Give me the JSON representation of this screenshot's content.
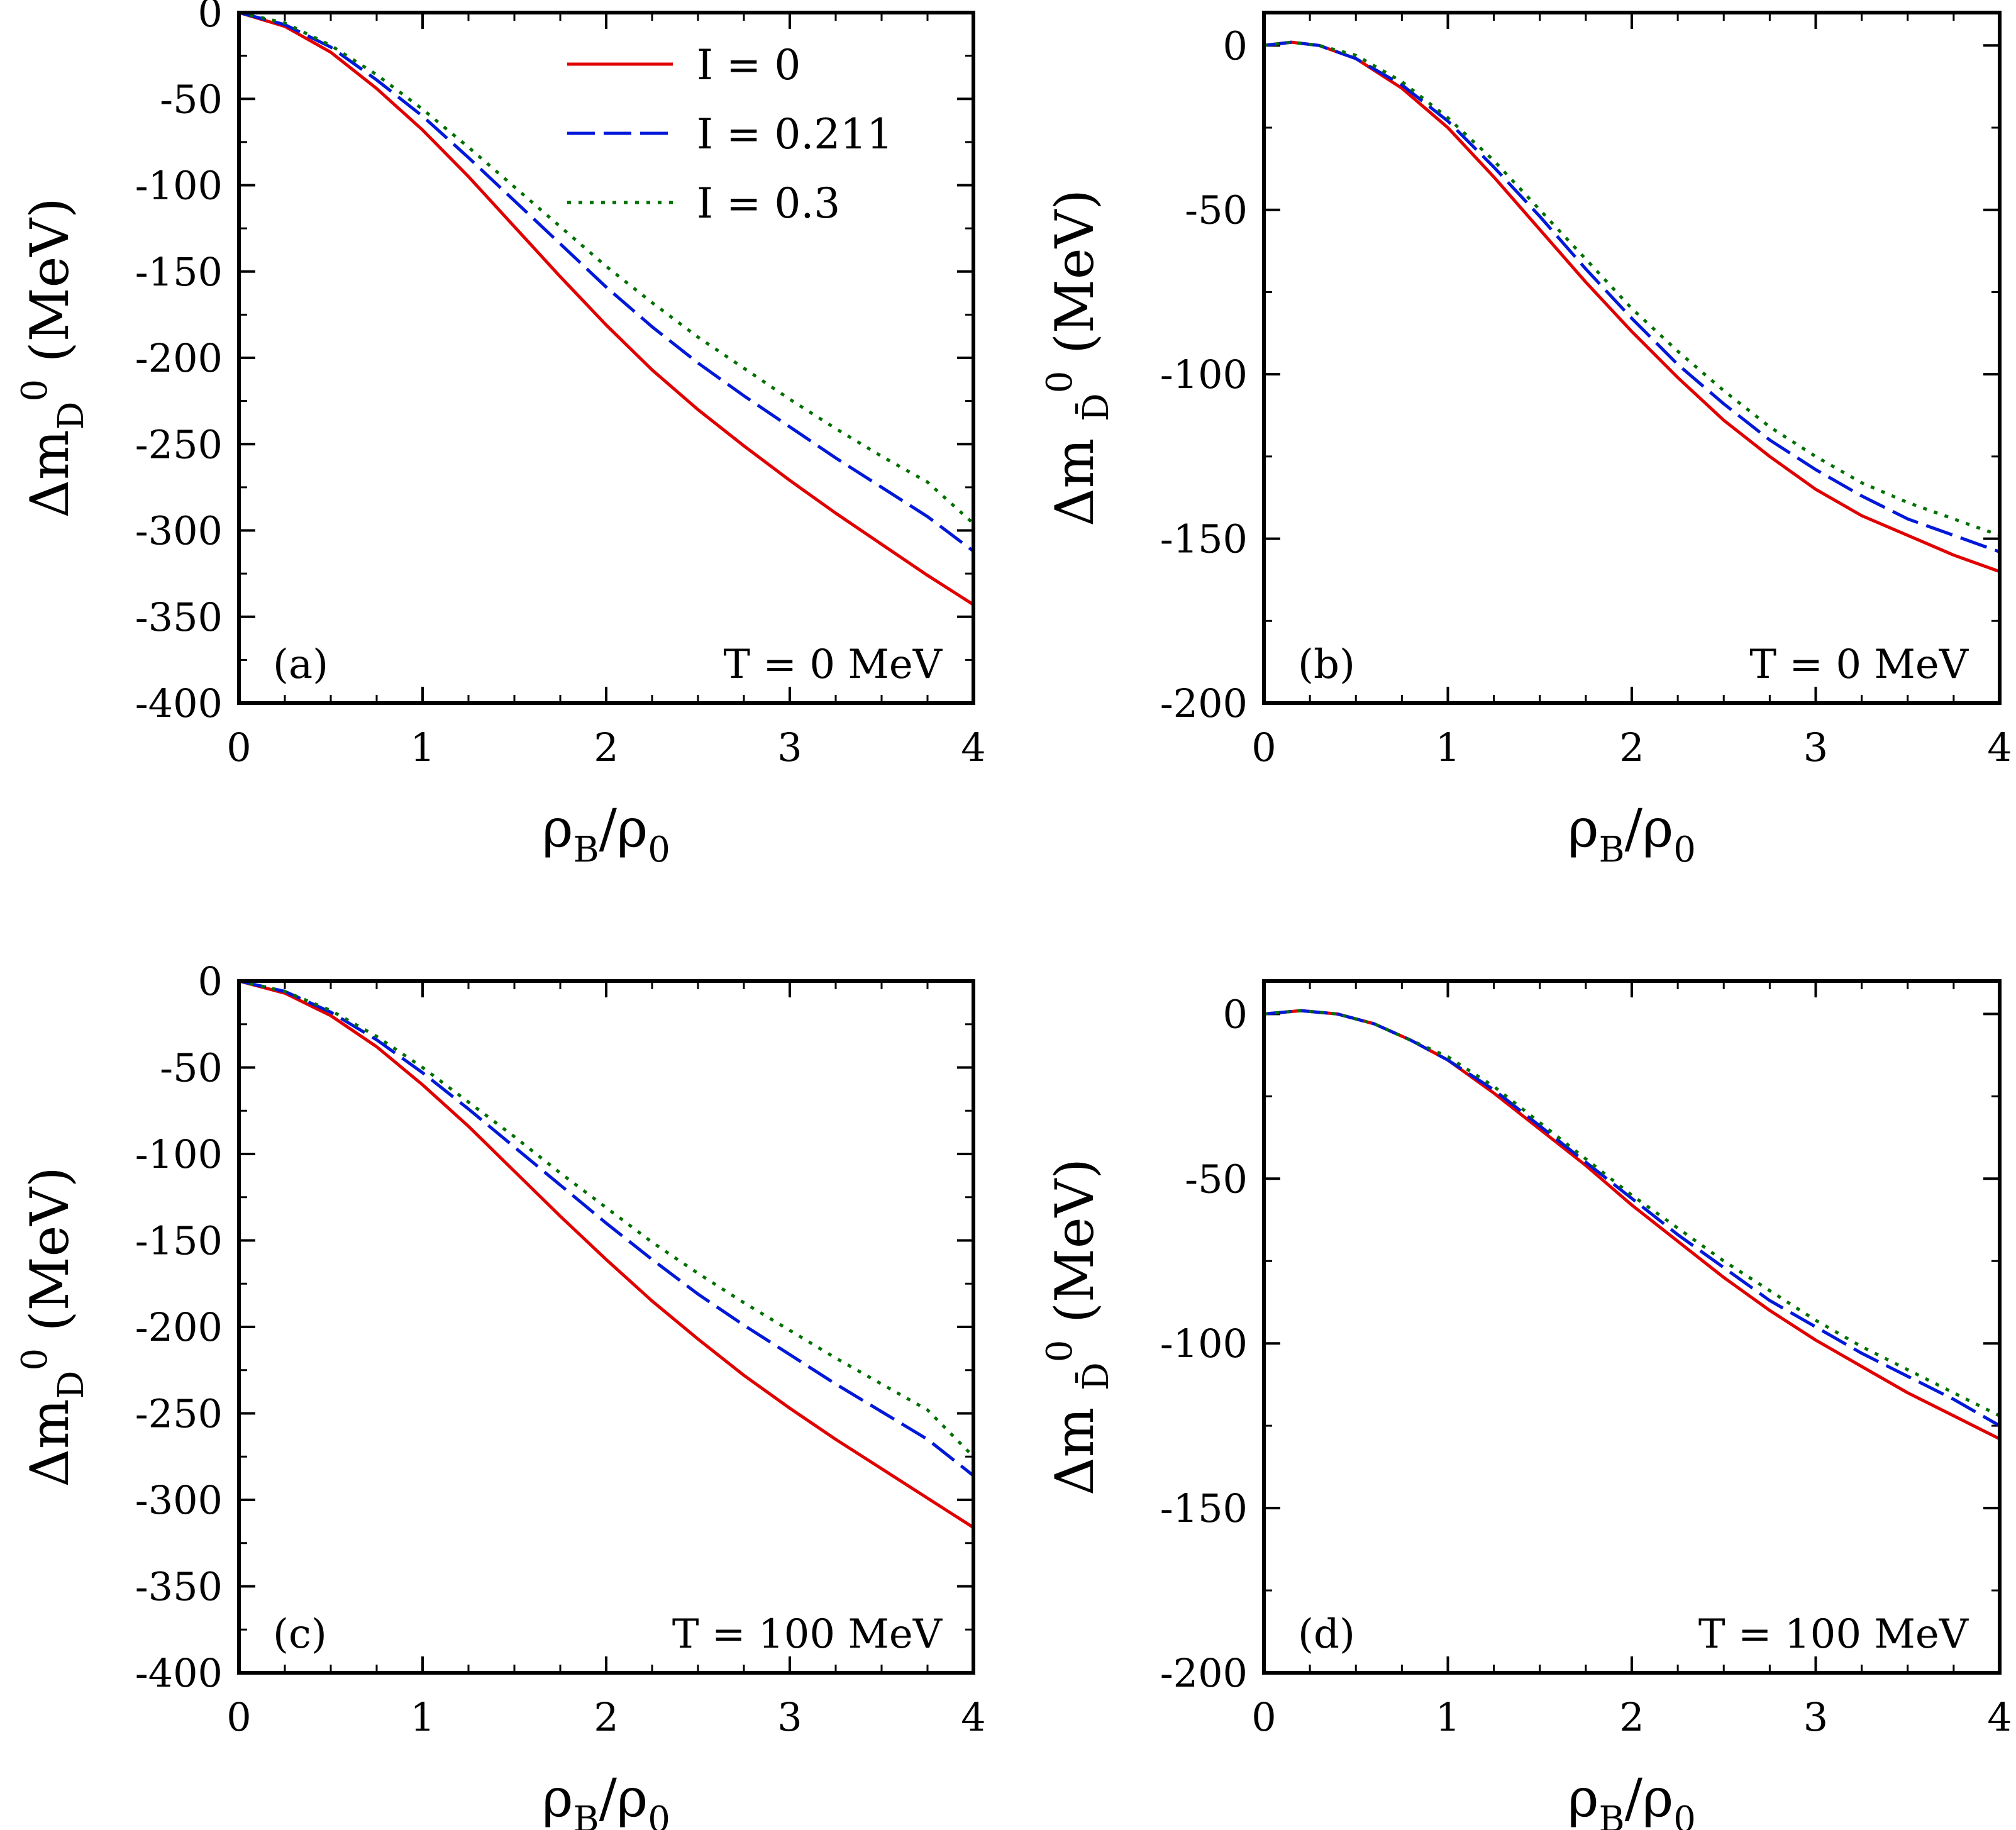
{
  "chart_data": [
    {
      "type": "line",
      "panel_label": "(a)",
      "temperature_label": "T = 0 MeV",
      "xlabel": {
        "main": "ρ",
        "sub": "B",
        "slash": "/ρ",
        "sub2": "0"
      },
      "ylabel": {
        "main": "Δm",
        "sub": "D",
        "sup": "0",
        "unit": " (MeV)"
      },
      "xlim": [
        0,
        4
      ],
      "ylim": [
        -400,
        0
      ],
      "xticks": [
        "0",
        "1",
        "2",
        "3",
        "4"
      ],
      "yticks": [
        "0",
        "-50",
        "-100",
        "-150",
        "-200",
        "-250",
        "-300",
        "-350",
        "-400"
      ],
      "ytick_values": [
        0,
        -50,
        -100,
        -150,
        -200,
        -250,
        -300,
        -350,
        -400
      ],
      "legend": true,
      "series": [
        {
          "name": "I =  0",
          "color": "#e00000",
          "dash": "solid",
          "x": [
            0,
            0.25,
            0.5,
            0.75,
            1.0,
            1.25,
            1.5,
            1.75,
            2.0,
            2.25,
            2.5,
            2.75,
            3.0,
            3.25,
            3.5,
            3.75,
            4.0
          ],
          "y": [
            0,
            -8,
            -23,
            -44,
            -68,
            -95,
            -124,
            -153,
            -181,
            -207,
            -230,
            -251,
            -271,
            -290,
            -308,
            -326,
            -343
          ]
        },
        {
          "name": "I =  0.211",
          "color": "#0018d8",
          "dash": "long-dash",
          "x": [
            0,
            0.25,
            0.5,
            0.75,
            1.0,
            1.25,
            1.5,
            1.75,
            2.0,
            2.25,
            2.5,
            2.75,
            3.0,
            3.25,
            3.5,
            3.75,
            4.0
          ],
          "y": [
            0,
            -7,
            -20,
            -39,
            -60,
            -84,
            -109,
            -134,
            -159,
            -182,
            -203,
            -222,
            -240,
            -258,
            -275,
            -292,
            -312
          ]
        },
        {
          "name": "I =  0.3",
          "color": "#007000",
          "dash": "dotted",
          "x": [
            0,
            0.25,
            0.5,
            0.75,
            1.0,
            1.25,
            1.5,
            1.75,
            2.0,
            2.25,
            2.5,
            2.75,
            3.0,
            3.25,
            3.5,
            3.75,
            4.0
          ],
          "y": [
            0,
            -6,
            -19,
            -36,
            -56,
            -78,
            -101,
            -124,
            -147,
            -168,
            -188,
            -206,
            -224,
            -241,
            -257,
            -272,
            -296
          ]
        }
      ]
    },
    {
      "type": "line",
      "panel_label": "(b)",
      "temperature_label": "T = 0 MeV",
      "xlabel": {
        "main": "ρ",
        "sub": "B",
        "slash": "/ρ",
        "sub2": "0"
      },
      "ylabel": {
        "main": "Δm ",
        "sub": "D̄",
        "sup": "0",
        "unit": " (MeV)"
      },
      "xlim": [
        0,
        4
      ],
      "ylim": [
        -200,
        10
      ],
      "xticks": [
        "0",
        "1",
        "2",
        "3",
        "4"
      ],
      "yticks": [
        "0",
        "-50",
        "-100",
        "-150",
        "-200"
      ],
      "ytick_values": [
        0,
        -50,
        -100,
        -150,
        -200
      ],
      "legend": false,
      "series": [
        {
          "name": "I =  0",
          "color": "#e00000",
          "dash": "solid",
          "x": [
            0,
            0.15,
            0.3,
            0.5,
            0.75,
            1.0,
            1.25,
            1.5,
            1.75,
            2.0,
            2.25,
            2.5,
            2.75,
            3.0,
            3.25,
            3.5,
            3.75,
            4.0
          ],
          "y": [
            0,
            1,
            0,
            -4,
            -13,
            -25,
            -40,
            -56,
            -72,
            -87,
            -101,
            -114,
            -125,
            -135,
            -143,
            -149,
            -155,
            -160
          ]
        },
        {
          "name": "I =  0.211",
          "color": "#0018d8",
          "dash": "long-dash",
          "x": [
            0,
            0.15,
            0.3,
            0.5,
            0.75,
            1.0,
            1.25,
            1.5,
            1.75,
            2.0,
            2.25,
            2.5,
            2.75,
            3.0,
            3.25,
            3.5,
            3.75,
            4.0
          ],
          "y": [
            0,
            1,
            0,
            -4,
            -12,
            -23,
            -37,
            -52,
            -68,
            -83,
            -97,
            -109,
            -120,
            -129,
            -137,
            -144,
            -149,
            -154
          ]
        },
        {
          "name": "I =  0.3",
          "color": "#007000",
          "dash": "dotted",
          "x": [
            0,
            0.15,
            0.3,
            0.5,
            0.75,
            1.0,
            1.25,
            1.5,
            1.75,
            2.0,
            2.25,
            2.5,
            2.75,
            3.0,
            3.25,
            3.5,
            3.75,
            4.0
          ],
          "y": [
            0,
            1,
            0,
            -3,
            -11,
            -22,
            -35,
            -50,
            -65,
            -80,
            -93,
            -105,
            -116,
            -125,
            -133,
            -139,
            -144,
            -149
          ]
        }
      ]
    },
    {
      "type": "line",
      "panel_label": "(c)",
      "temperature_label": "T = 100 MeV",
      "xlabel": {
        "main": "ρ",
        "sub": "B",
        "slash": "/ρ",
        "sub2": "0"
      },
      "ylabel": {
        "main": "Δm",
        "sub": "D",
        "sup": "0",
        "unit": " (MeV)"
      },
      "xlim": [
        0,
        4
      ],
      "ylim": [
        -400,
        0
      ],
      "xticks": [
        "0",
        "1",
        "2",
        "3",
        "4"
      ],
      "yticks": [
        "0",
        "-50",
        "-100",
        "-150",
        "-200",
        "-250",
        "-300",
        "-350",
        "-400"
      ],
      "ytick_values": [
        0,
        -50,
        -100,
        -150,
        -200,
        -250,
        -300,
        -350,
        -400
      ],
      "legend": false,
      "series": [
        {
          "name": "I =  0",
          "color": "#e00000",
          "dash": "solid",
          "x": [
            0,
            0.25,
            0.5,
            0.75,
            1.0,
            1.25,
            1.5,
            1.75,
            2.0,
            2.25,
            2.5,
            2.75,
            3.0,
            3.25,
            3.5,
            3.75,
            4.0
          ],
          "y": [
            0,
            -7,
            -20,
            -38,
            -60,
            -84,
            -110,
            -136,
            -161,
            -185,
            -207,
            -228,
            -247,
            -265,
            -282,
            -299,
            -316
          ]
        },
        {
          "name": "I =  0.211",
          "color": "#0018d8",
          "dash": "long-dash",
          "x": [
            0,
            0.25,
            0.5,
            0.75,
            1.0,
            1.25,
            1.5,
            1.75,
            2.0,
            2.25,
            2.5,
            2.75,
            3.0,
            3.25,
            3.5,
            3.75,
            4.0
          ],
          "y": [
            0,
            -6,
            -18,
            -34,
            -53,
            -74,
            -96,
            -118,
            -140,
            -161,
            -181,
            -199,
            -216,
            -233,
            -249,
            -265,
            -286
          ]
        },
        {
          "name": "I =  0.3",
          "color": "#007000",
          "dash": "dotted",
          "x": [
            0,
            0.25,
            0.5,
            0.75,
            1.0,
            1.25,
            1.5,
            1.75,
            2.0,
            2.25,
            2.5,
            2.75,
            3.0,
            3.25,
            3.5,
            3.75,
            4.0
          ],
          "y": [
            0,
            -6,
            -17,
            -32,
            -50,
            -70,
            -90,
            -111,
            -131,
            -151,
            -169,
            -186,
            -202,
            -218,
            -233,
            -248,
            -275
          ]
        }
      ]
    },
    {
      "type": "line",
      "panel_label": "(d)",
      "temperature_label": "T = 100 MeV",
      "xlabel": {
        "main": "ρ",
        "sub": "B",
        "slash": "/ρ",
        "sub2": "0"
      },
      "ylabel": {
        "main": "Δm ",
        "sub": "D̄",
        "sup": "0",
        "unit": " (MeV)"
      },
      "xlim": [
        0,
        4
      ],
      "ylim": [
        -200,
        10
      ],
      "xticks": [
        "0",
        "1",
        "2",
        "3",
        "4"
      ],
      "yticks": [
        "0",
        "-50",
        "-100",
        "-150",
        "-200"
      ],
      "ytick_values": [
        0,
        -50,
        -100,
        -150,
        -200
      ],
      "legend": false,
      "series": [
        {
          "name": "I =  0",
          "color": "#e00000",
          "dash": "solid",
          "x": [
            0,
            0.2,
            0.4,
            0.6,
            0.8,
            1.0,
            1.25,
            1.5,
            1.75,
            2.0,
            2.25,
            2.5,
            2.75,
            3.0,
            3.25,
            3.5,
            3.75,
            4.0
          ],
          "y": [
            0,
            1,
            0,
            -3,
            -8,
            -14,
            -24,
            -35,
            -46,
            -58,
            -69,
            -80,
            -90,
            -99,
            -107,
            -115,
            -122,
            -129
          ]
        },
        {
          "name": "I =  0.211",
          "color": "#0018d8",
          "dash": "long-dash",
          "x": [
            0,
            0.2,
            0.4,
            0.6,
            0.8,
            1.0,
            1.25,
            1.5,
            1.75,
            2.0,
            2.25,
            2.5,
            2.75,
            3.0,
            3.25,
            3.5,
            3.75,
            4.0
          ],
          "y": [
            0,
            1,
            0,
            -3,
            -8,
            -14,
            -23,
            -34,
            -45,
            -56,
            -67,
            -77,
            -87,
            -95,
            -103,
            -110,
            -117,
            -125
          ]
        },
        {
          "name": "I =  0.3",
          "color": "#007000",
          "dash": "dotted",
          "x": [
            0,
            0.2,
            0.4,
            0.6,
            0.8,
            1.0,
            1.25,
            1.5,
            1.75,
            2.0,
            2.25,
            2.5,
            2.75,
            3.0,
            3.25,
            3.5,
            3.75,
            4.0
          ],
          "y": [
            0,
            1,
            0,
            -3,
            -8,
            -13,
            -22,
            -33,
            -44,
            -55,
            -65,
            -75,
            -84,
            -93,
            -101,
            -108,
            -115,
            -122
          ]
        }
      ]
    }
  ]
}
